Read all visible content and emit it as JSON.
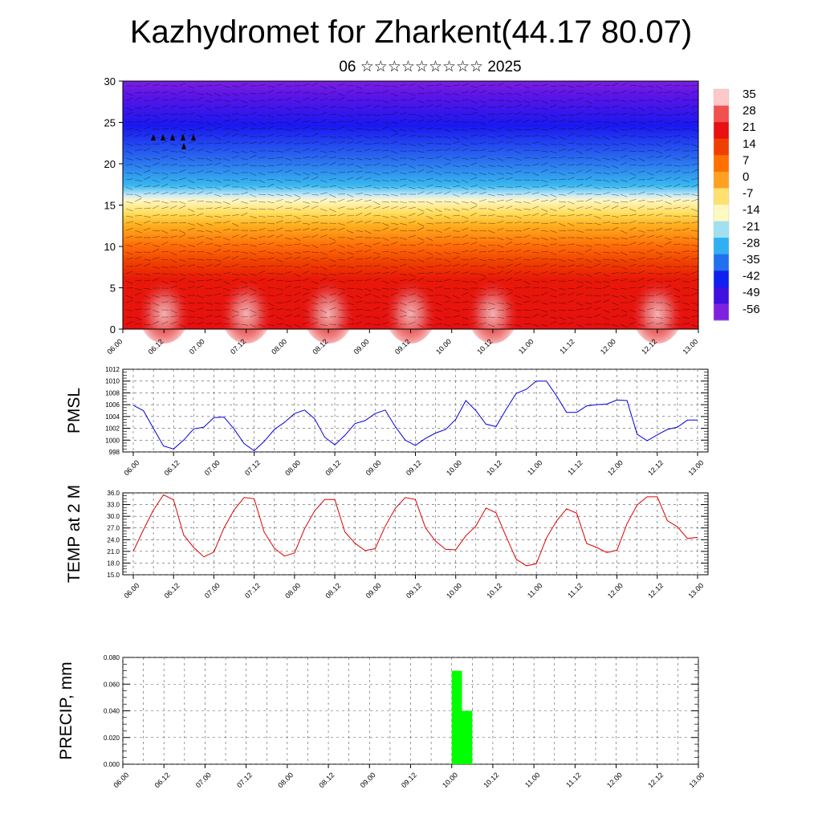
{
  "title": "Kazhydromet for Zharkent(44.17 80.07)",
  "subtitle": "06 ☆☆☆☆☆☆☆☆☆ 2025",
  "x_tick_labels": [
    "06.00",
    "06.12",
    "07.00",
    "07.12",
    "08.00",
    "08.12",
    "09.00",
    "09.12",
    "10.00",
    "10.12",
    "11.00",
    "11.12",
    "12.00",
    "12.12",
    "13.00"
  ],
  "colorbar": {
    "labels": [
      "35",
      "28",
      "21",
      "14",
      "7",
      "0",
      "-7",
      "-14",
      "-21",
      "-28",
      "-35",
      "-42",
      "-49",
      "-56"
    ],
    "colors": [
      "#ffc8c8",
      "#f05050",
      "#e81010",
      "#f04000",
      "#ff7000",
      "#ffa020",
      "#ffe070",
      "#fff8c0",
      "#a0e0f0",
      "#30b0f0",
      "#2070f0",
      "#1020f0",
      "#4010e0",
      "#8020e0"
    ]
  },
  "chart_data": [
    {
      "type": "heatmap",
      "title": "",
      "xlabel": "",
      "ylabel": "",
      "x_range": [
        "06.00",
        "13.00"
      ],
      "ylim": [
        0,
        30
      ],
      "y_ticks": [
        0,
        5,
        10,
        15,
        20,
        25,
        30
      ],
      "z_label": "temperature",
      "z_range": [
        -56,
        35
      ],
      "description_values": {
        "surface_max_peaks_at": [
          "06.12",
          "07.12",
          "08.12",
          "09.12",
          "10.12",
          "12.12"
        ],
        "freezing_level_km": 16,
        "coldest_band_km": [
          25,
          30
        ]
      }
    },
    {
      "type": "line",
      "title": "",
      "xlabel": "",
      "ylabel": "PMSL",
      "ylim": [
        998,
        1012
      ],
      "y_ticks": [
        998,
        1000,
        1002,
        1004,
        1006,
        1008,
        1010,
        1012
      ],
      "color": "#0000dd",
      "x": [
        0,
        3,
        6,
        9,
        12,
        15,
        18,
        21,
        24,
        27,
        30,
        33,
        36,
        39,
        42,
        45,
        48,
        51,
        54,
        57,
        60,
        63,
        66,
        69,
        72,
        75,
        78,
        81,
        84,
        87,
        90,
        93,
        96,
        99,
        102,
        105,
        108,
        111,
        114,
        117,
        120,
        123,
        126,
        129,
        132,
        135,
        138,
        141,
        144,
        147,
        150,
        153,
        156,
        159,
        162,
        165,
        168
      ],
      "values": [
        1005.9,
        1005.0,
        1002.0,
        999.0,
        998.5,
        1000.0,
        1001.9,
        1002.2,
        1003.8,
        1003.9,
        1001.9,
        999.4,
        998.2,
        999.8,
        1001.8,
        1003.0,
        1004.5,
        1005.1,
        1003.6,
        1000.5,
        999.2,
        1000.8,
        1002.8,
        1003.3,
        1004.5,
        1005.1,
        1002.3,
        1000.0,
        999.1,
        1000.3,
        1001.2,
        1001.8,
        1003.5,
        1006.7,
        1005.0,
        1002.7,
        1002.3,
        1005.2,
        1007.9,
        1008.6,
        1010.0,
        1010.0,
        1007.5,
        1004.7,
        1004.7,
        1005.8,
        1006.0,
        1006.1,
        1006.8,
        1006.7,
        1001.0,
        999.9,
        1000.9,
        1001.8,
        1002.2,
        1003.4,
        1003.4
      ]
    },
    {
      "type": "line",
      "title": "",
      "xlabel": "",
      "ylabel": "TEMP at 2 M",
      "ylim": [
        15.0,
        36.0
      ],
      "y_ticks": [
        15.0,
        18.0,
        21.0,
        24.0,
        27.0,
        30.0,
        33.0,
        36.0
      ],
      "color": "#dd0000",
      "x": [
        0,
        3,
        6,
        9,
        12,
        15,
        18,
        21,
        24,
        27,
        30,
        33,
        36,
        39,
        42,
        45,
        48,
        51,
        54,
        57,
        60,
        63,
        66,
        69,
        72,
        75,
        78,
        81,
        84,
        87,
        90,
        93,
        96,
        99,
        102,
        105,
        108,
        111,
        114,
        117,
        120,
        123,
        126,
        129,
        132,
        135,
        138,
        141,
        144,
        147,
        150,
        153,
        156,
        159,
        162,
        165,
        168
      ],
      "values": [
        21.0,
        26.5,
        31.6,
        35.5,
        34.2,
        25.2,
        22.0,
        19.6,
        20.8,
        27.0,
        31.6,
        34.8,
        34.5,
        25.9,
        21.8,
        19.8,
        20.6,
        26.8,
        31.4,
        34.3,
        34.3,
        26.0,
        23.1,
        21.2,
        21.7,
        27.4,
        32.0,
        34.8,
        34.3,
        27.0,
        23.6,
        21.5,
        21.4,
        25.0,
        27.5,
        32.1,
        30.9,
        24.8,
        19.0,
        17.3,
        17.8,
        24.4,
        28.8,
        31.9,
        30.8,
        23.0,
        22.0,
        20.7,
        21.3,
        28.1,
        32.9,
        35.0,
        35.0,
        28.9,
        27.3,
        24.3,
        24.6
      ]
    },
    {
      "type": "bar",
      "title": "",
      "xlabel": "",
      "ylabel": "PRECIP, mm",
      "ylim": [
        0.0,
        0.08
      ],
      "y_ticks": [
        "0.000",
        "0.020",
        "0.040",
        "0.060",
        "0.080"
      ],
      "color": "#00ff00",
      "bars": [
        {
          "x_from": 96,
          "x_to": 99,
          "value": 0.07
        },
        {
          "x_from": 99,
          "x_to": 102,
          "value": 0.04
        }
      ]
    }
  ]
}
